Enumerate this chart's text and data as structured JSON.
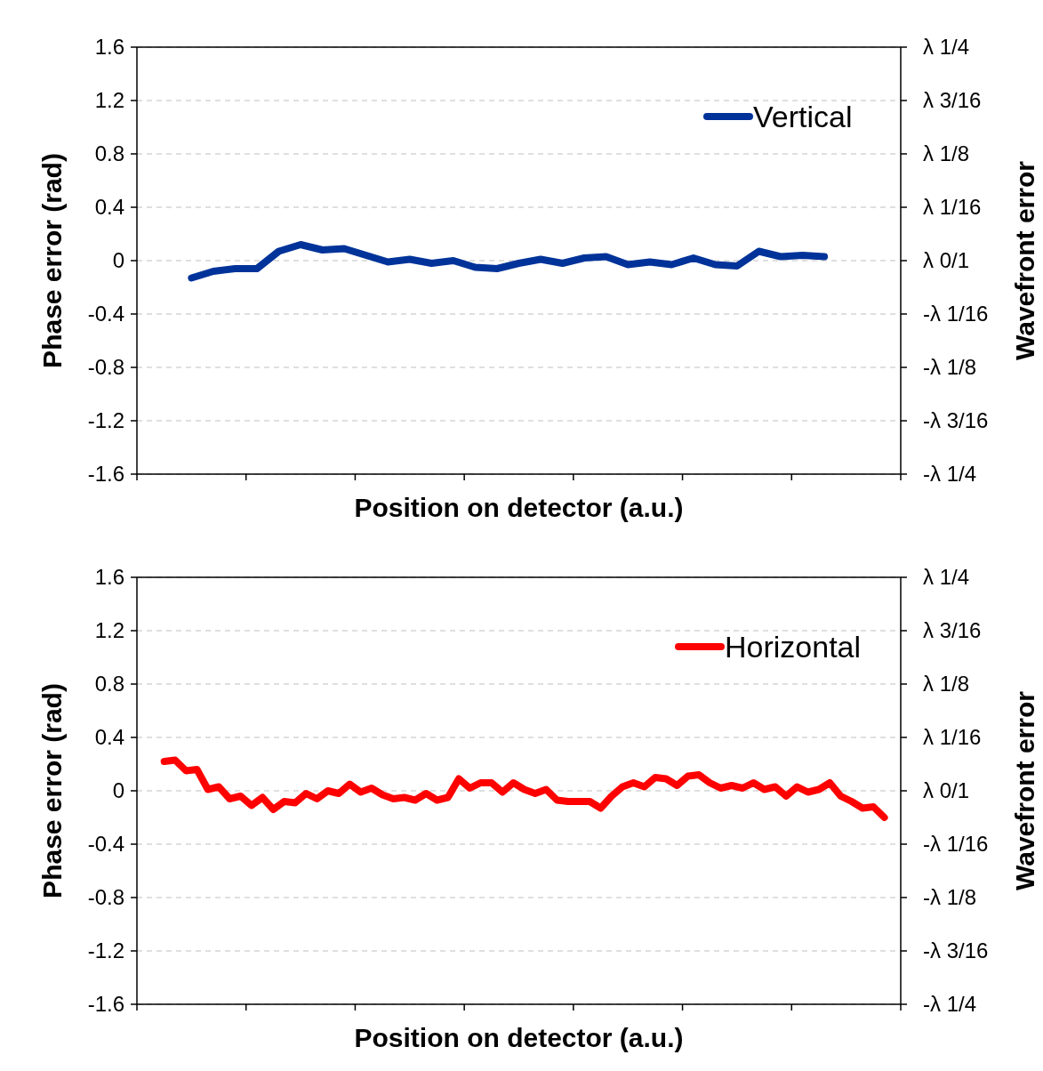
{
  "chart_data": [
    {
      "type": "line",
      "xlabel": "Position on detector (a.u.)",
      "ylabel": "Phase error (rad)",
      "y2label": "Wavefront error",
      "categories": [
        null,
        null,
        null,
        null,
        null,
        null,
        null,
        null,
        null,
        null,
        null,
        null,
        null,
        null,
        null,
        null,
        null,
        null,
        null,
        null,
        null,
        null,
        null,
        null,
        null,
        null,
        null,
        null,
        null,
        null,
        null,
        null,
        null,
        null,
        null
      ],
      "ylim": [
        -1.6,
        1.6
      ],
      "yticks": [
        -1.6,
        -1.2,
        -0.8,
        -0.4,
        0,
        0.4,
        0.8,
        1.2,
        1.6
      ],
      "y2_categories": [
        "λ 1/4",
        "λ 3/16",
        "λ 1/8",
        "λ 1/16",
        "λ 0/1",
        "-λ 1/16",
        "-λ 1/8",
        "-λ 3/16",
        "-λ 1/4"
      ],
      "grid": "y",
      "legend": "top right",
      "series": [
        {
          "name": "Vertical",
          "color": "#003399",
          "values": [
            null,
            null,
            -0.13,
            -0.08,
            -0.06,
            -0.06,
            0.07,
            0.12,
            0.08,
            0.09,
            0.04,
            -0.01,
            0.01,
            -0.02,
            0.0,
            -0.05,
            -0.06,
            -0.02,
            0.01,
            -0.02,
            0.02,
            0.03,
            -0.03,
            -0.01,
            -0.03,
            0.02,
            -0.03,
            -0.04,
            0.07,
            0.03,
            0.04,
            0.03,
            null,
            null,
            null
          ]
        }
      ]
    },
    {
      "type": "line",
      "xlabel": "Position on detector (a.u.)",
      "ylabel": "Phase error (rad)",
      "y2label": "Wavefront error",
      "categories": [
        null,
        null,
        null,
        null,
        null,
        null,
        null,
        null,
        null,
        null,
        null,
        null,
        null,
        null,
        null,
        null,
        null,
        null,
        null,
        null,
        null,
        null,
        null,
        null,
        null,
        null,
        null,
        null,
        null,
        null,
        null,
        null,
        null,
        null,
        null,
        null,
        null,
        null,
        null,
        null,
        null,
        null,
        null,
        null,
        null,
        null,
        null,
        null,
        null,
        null,
        null,
        null,
        null,
        null,
        null,
        null,
        null,
        null,
        null,
        null,
        null,
        null,
        null,
        null,
        null,
        null,
        null,
        null,
        null,
        null
      ],
      "ylim": [
        -1.6,
        1.6
      ],
      "yticks": [
        -1.6,
        -1.2,
        -0.8,
        -0.4,
        0,
        0.4,
        0.8,
        1.2,
        1.6
      ],
      "y2_categories": [
        "λ 1/4",
        "λ 3/16",
        "λ 1/8",
        "λ 1/16",
        "λ 0/1",
        "-λ 1/16",
        "-λ 1/8",
        "-λ 3/16",
        "-λ 1/4"
      ],
      "grid": "y",
      "legend": "top right",
      "series": [
        {
          "name": "Horizontal",
          "color": "#ff0000",
          "values": [
            null,
            null,
            0.22,
            0.23,
            0.15,
            0.16,
            0.01,
            0.03,
            -0.06,
            -0.04,
            -0.11,
            -0.05,
            -0.14,
            -0.08,
            -0.09,
            -0.02,
            -0.06,
            0.0,
            -0.02,
            0.05,
            -0.01,
            0.02,
            -0.03,
            -0.06,
            -0.05,
            -0.07,
            -0.02,
            -0.07,
            -0.05,
            0.09,
            0.02,
            0.06,
            0.06,
            -0.01,
            0.06,
            0.01,
            -0.02,
            0.01,
            -0.07,
            -0.08,
            -0.08,
            -0.08,
            -0.13,
            -0.04,
            0.03,
            0.06,
            0.03,
            0.1,
            0.09,
            0.04,
            0.11,
            0.12,
            0.06,
            0.02,
            0.04,
            0.02,
            0.06,
            0.01,
            0.03,
            -0.04,
            0.03,
            -0.01,
            0.01,
            0.06,
            -0.04,
            -0.08,
            -0.13,
            -0.12,
            -0.2,
            null
          ]
        }
      ]
    }
  ]
}
